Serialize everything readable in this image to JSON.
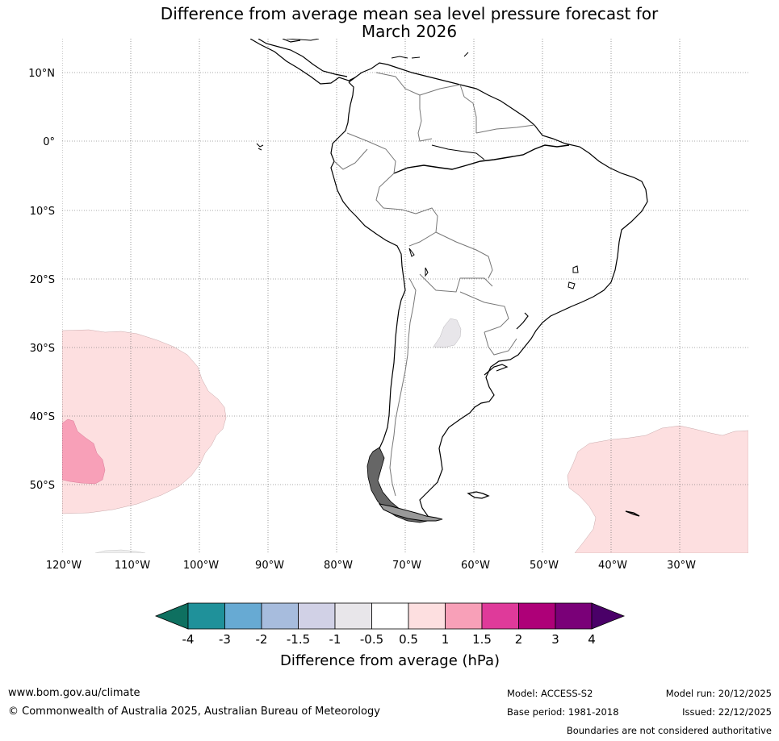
{
  "title_line1": "Difference from average mean sea level pressure forecast for",
  "title_line2": "March 2026",
  "map": {
    "lat_labels": [
      "10°N",
      "0°",
      "10°S",
      "20°S",
      "30°S",
      "40°S",
      "50°S"
    ],
    "lon_labels": [
      "120°W",
      "110°W",
      "100°W",
      "90°W",
      "80°W",
      "70°W",
      "60°W",
      "50°W",
      "40°W",
      "30°W"
    ],
    "anomaly_regions": [
      {
        "name": "south-east-pacific-positive",
        "category": "0.5 to 1"
      },
      {
        "name": "south-east-pacific-core",
        "category": "1 to 1.5"
      },
      {
        "name": "south-atlantic-positive",
        "category": "0.5 to 1"
      },
      {
        "name": "northern-argentina-negative",
        "category": "-1 to -0.5"
      }
    ]
  },
  "colorbar": {
    "tick_labels": [
      "-4",
      "-3",
      "-2",
      "-1.5",
      "-1",
      "-0.5",
      "0.5",
      "1",
      "1.5",
      "2",
      "3",
      "4"
    ],
    "colors": [
      "#0e7060",
      "#1f919a",
      "#67aad3",
      "#a7bcdd",
      "#d1d1e6",
      "#e8e6ea",
      "#ffffff",
      "#fddfe0",
      "#f8a0b8",
      "#df3a9a",
      "#ae0078",
      "#7a0078",
      "#4a0068"
    ],
    "label": "Difference from average (hPa)"
  },
  "footer": {
    "url": "www.bom.gov.au/climate",
    "copyright": "© Commonwealth of Australia 2025, Australian Bureau of Meteorology",
    "model": "Model: ACCESS-S2",
    "base_period": "Base period: 1981-2018",
    "model_run": "Model run: 20/12/2025",
    "issued": "Issued: 22/12/2025",
    "disclaimer": "Boundaries are not considered authoritative"
  }
}
